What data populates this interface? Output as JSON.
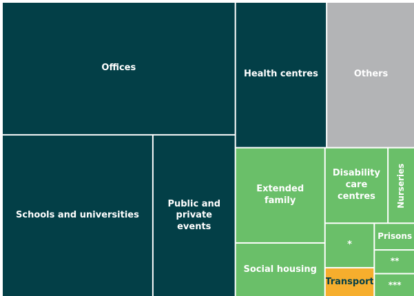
{
  "chart_data": {
    "type": "treemap",
    "categories": [
      "Offices",
      "Schools and universities",
      "Public and private events",
      "Health centres",
      "Others",
      "Extended family",
      "Social housing",
      "Disability care centres",
      "Nurseries",
      "*",
      "Transport",
      "Prisons",
      "**",
      "***"
    ],
    "values": [
      25.4,
      20.1,
      11.0,
      10.9,
      10.6,
      7.0,
      4.0,
      3.9,
      1.7,
      1.8,
      1.2,
      0.9,
      0.8,
      0.8
    ],
    "colors": [
      "#033f47",
      "#033f47",
      "#033f47",
      "#033f47",
      "#b3b4b6",
      "#6abf69",
      "#6abf69",
      "#6abf69",
      "#6abf69",
      "#6abf69",
      "#f6ae2d",
      "#6abf69",
      "#6abf69",
      "#6abf69"
    ]
  }
}
